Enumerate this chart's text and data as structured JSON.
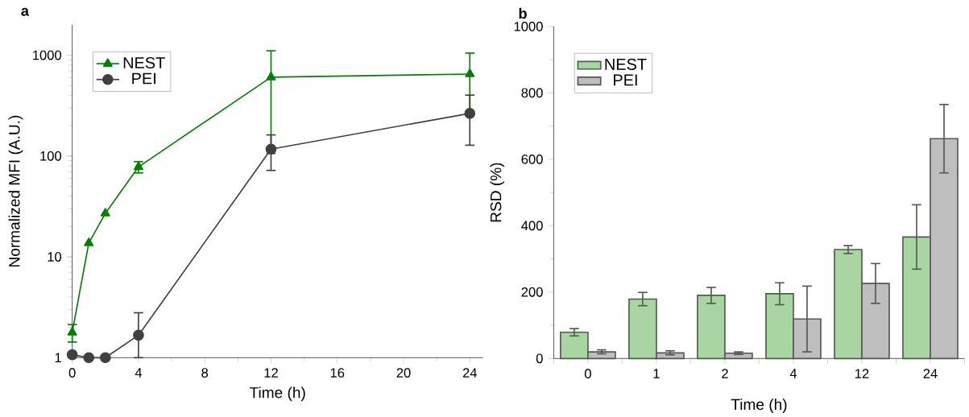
{
  "chart_data": [
    {
      "type": "line",
      "title": "a",
      "xlabel": "Time (h)",
      "ylabel": "Normalized MFI (A.U.)",
      "log": "y",
      "xlim": [
        0,
        24.8
      ],
      "xticks": [
        0,
        4,
        8,
        12,
        16,
        20,
        24
      ],
      "ylim": [
        1,
        2000
      ],
      "yticks": [
        1,
        10,
        100,
        1000
      ],
      "legend": "top left",
      "series": [
        {
          "name": "NEST",
          "color": "#008000",
          "marker": "triangle",
          "x": [
            0,
            1,
            2,
            4,
            12,
            24
          ],
          "values": [
            1.78,
            13.7,
            27,
            78,
            606,
            650
          ],
          "errors": [
            0.35,
            null,
            null,
            10,
            500,
            400
          ]
        },
        {
          "name": "PEI",
          "color": "#404040",
          "marker": "circle",
          "x": [
            0,
            1,
            2,
            4,
            12,
            24
          ],
          "values": [
            1.07,
            1.0,
            1.0,
            1.67,
            117,
            265
          ],
          "errors": [
            null,
            null,
            null,
            [
              1,
              2.79
            ],
            45,
            137
          ]
        }
      ]
    },
    {
      "type": "bar",
      "title": "b",
      "xlabel": "Time (h)",
      "ylabel": "RSD (%)",
      "categories": [
        "0",
        "1",
        "2",
        "4",
        "12",
        "24"
      ],
      "ylim": [
        0,
        1000
      ],
      "yticks": [
        0,
        200,
        400,
        600,
        800,
        1000
      ],
      "legend": "top left",
      "series": [
        {
          "name": "NEST",
          "color": "#a8d5a2",
          "values": [
            79,
            179,
            190,
            195,
            328,
            366
          ],
          "errors": [
            11,
            20,
            24,
            33,
            12,
            97
          ]
        },
        {
          "name": "PEI",
          "color": "#bebebe",
          "values": [
            20,
            17,
            16,
            119,
            226,
            662
          ],
          "errors": [
            6,
            6,
            4,
            99,
            60,
            103
          ]
        }
      ]
    }
  ]
}
